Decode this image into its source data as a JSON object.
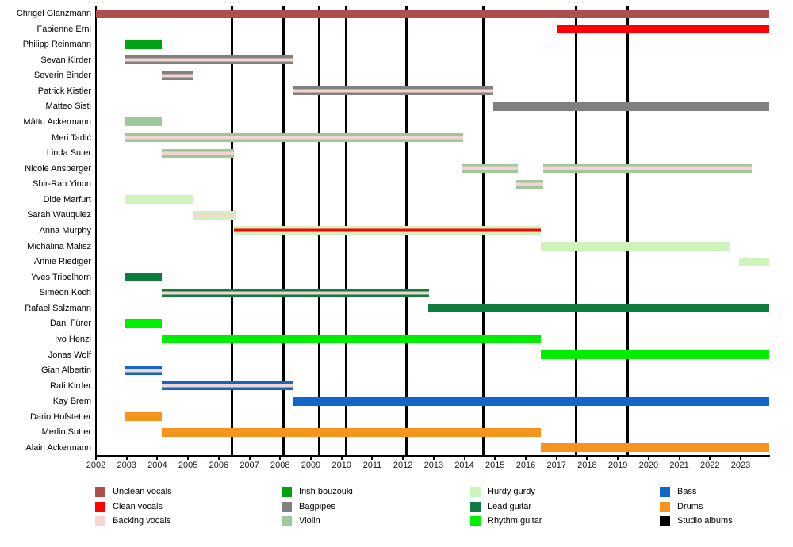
{
  "chart_data": {
    "type": "timeline",
    "description": "Band members timeline with studio album release markers",
    "x_axis": {
      "start": 2002,
      "end": 2023.93,
      "tick_years": [
        2002,
        2003,
        2004,
        2005,
        2006,
        2007,
        2008,
        2009,
        2010,
        2011,
        2012,
        2013,
        2014,
        2015,
        2016,
        2017,
        2018,
        2019,
        2020,
        2021,
        2022,
        2023
      ]
    },
    "roles": {
      "unclean_vocals": {
        "label": "Unclean vocals",
        "color": "#b04d4d"
      },
      "clean_vocals": {
        "label": "Clean vocals",
        "color": "#ff0000"
      },
      "backing_vocals": {
        "label": "Backing vocals",
        "color": "#f6d5d0"
      },
      "irish_bouzouki": {
        "label": "Irish bouzouki",
        "color": "#00a313"
      },
      "bagpipes": {
        "label": "Bagpipes",
        "color": "#808080"
      },
      "violin": {
        "label": "Violin",
        "color": "#9ec79c"
      },
      "hurdy_gurdy": {
        "label": "Hurdy gurdy",
        "color": "#cff3bd"
      },
      "lead_guitar": {
        "label": "Lead guitar",
        "color": "#0e7c3e"
      },
      "rhythm_guitar": {
        "label": "Rhythm guitar",
        "color": "#00ef00"
      },
      "bass": {
        "label": "Bass",
        "color": "#1166c8"
      },
      "drums": {
        "label": "Drums",
        "color": "#f7941e"
      },
      "studio_albums": {
        "label": "Studio albums",
        "color": "#000000"
      }
    },
    "legend_columns": [
      [
        "unclean_vocals",
        "clean_vocals",
        "backing_vocals"
      ],
      [
        "irish_bouzouki",
        "bagpipes",
        "violin"
      ],
      [
        "hurdy_gurdy",
        "lead_guitar",
        "rhythm_guitar"
      ],
      [
        "bass",
        "drums",
        "studio_albums"
      ]
    ],
    "albums": [
      2006.42,
      2008.12,
      2009.28,
      2010.16,
      2012.12,
      2014.63,
      2017.65,
      2019.33
    ],
    "members": [
      {
        "name": "Chrigel Glanzmann",
        "bars": [
          {
            "from": 2002.0,
            "to": 2023.93,
            "stripes": [
              "unclean_vocals"
            ]
          }
        ]
      },
      {
        "name": "Fabienne Erni",
        "bars": [
          {
            "from": 2017.0,
            "to": 2023.93,
            "stripes": [
              "clean_vocals"
            ]
          }
        ]
      },
      {
        "name": "Philipp Reinmann",
        "bars": [
          {
            "from": 2002.92,
            "to": 2004.15,
            "stripes": [
              "irish_bouzouki"
            ]
          }
        ]
      },
      {
        "name": "Sevan Kirder",
        "bars": [
          {
            "from": 2002.92,
            "to": 2008.4,
            "stripes": [
              "bagpipes",
              "backing_vocals",
              "bagpipes"
            ]
          }
        ]
      },
      {
        "name": "Severin Binder",
        "bars": [
          {
            "from": 2004.15,
            "to": 2005.15,
            "stripes": [
              "bagpipes",
              "backing_vocals",
              "bagpipes"
            ]
          }
        ]
      },
      {
        "name": "Patrick Kistler",
        "bars": [
          {
            "from": 2008.4,
            "to": 2014.95,
            "stripes": [
              "bagpipes",
              "backing_vocals",
              "bagpipes"
            ]
          }
        ]
      },
      {
        "name": "Matteo Sisti",
        "bars": [
          {
            "from": 2014.95,
            "to": 2023.93,
            "stripes": [
              "bagpipes"
            ]
          }
        ]
      },
      {
        "name": "Mättu Ackermann",
        "bars": [
          {
            "from": 2002.92,
            "to": 2004.15,
            "stripes": [
              "violin"
            ]
          }
        ]
      },
      {
        "name": "Meri Tadić",
        "bars": [
          {
            "from": 2002.92,
            "to": 2013.95,
            "stripes": [
              "violin",
              "backing_vocals",
              "violin"
            ]
          }
        ]
      },
      {
        "name": "Linda Suter",
        "bars": [
          {
            "from": 2004.15,
            "to": 2006.5,
            "stripes": [
              "violin",
              "backing_vocals",
              "violin"
            ]
          }
        ]
      },
      {
        "name": "Nicole Ansperger",
        "bars": [
          {
            "from": 2013.92,
            "to": 2015.75,
            "stripes": [
              "violin",
              "backing_vocals",
              "violin"
            ]
          },
          {
            "from": 2016.57,
            "to": 2023.35,
            "stripes": [
              "violin",
              "backing_vocals",
              "violin"
            ]
          }
        ]
      },
      {
        "name": "Shir-Ran Yinon",
        "bars": [
          {
            "from": 2015.7,
            "to": 2016.57,
            "stripes": [
              "violin",
              "backing_vocals",
              "violin"
            ]
          }
        ]
      },
      {
        "name": "Dide Marfurt",
        "bars": [
          {
            "from": 2002.92,
            "to": 2005.15,
            "stripes": [
              "hurdy_gurdy"
            ]
          }
        ]
      },
      {
        "name": "Sarah Wauquiez",
        "bars": [
          {
            "from": 2005.15,
            "to": 2006.55,
            "stripes": [
              "hurdy_gurdy",
              "backing_vocals",
              "hurdy_gurdy"
            ]
          }
        ]
      },
      {
        "name": "Anna Murphy",
        "bars": [
          {
            "from": 2006.5,
            "to": 2016.5,
            "stripes": [
              "hurdy_gurdy",
              "clean_vocals",
              "hurdy_gurdy"
            ]
          }
        ]
      },
      {
        "name": "Michalina Malisz",
        "bars": [
          {
            "from": 2016.5,
            "to": 2022.65,
            "stripes": [
              "hurdy_gurdy"
            ]
          }
        ]
      },
      {
        "name": "Annie Riediger",
        "bars": [
          {
            "from": 2022.95,
            "to": 2023.93,
            "stripes": [
              "hurdy_gurdy"
            ]
          }
        ]
      },
      {
        "name": "Yves Tribelhorn",
        "bars": [
          {
            "from": 2002.92,
            "to": 2004.15,
            "stripes": [
              "lead_guitar"
            ]
          }
        ]
      },
      {
        "name": "Siméon Koch",
        "bars": [
          {
            "from": 2004.15,
            "to": 2012.85,
            "stripes": [
              "lead_guitar",
              "backing_vocals",
              "lead_guitar"
            ]
          }
        ]
      },
      {
        "name": "Rafael Salzmann",
        "bars": [
          {
            "from": 2012.82,
            "to": 2023.93,
            "stripes": [
              "lead_guitar"
            ]
          }
        ]
      },
      {
        "name": "Dani Fürer",
        "bars": [
          {
            "from": 2002.92,
            "to": 2004.15,
            "stripes": [
              "rhythm_guitar"
            ]
          }
        ]
      },
      {
        "name": "Ivo Henzi",
        "bars": [
          {
            "from": 2004.15,
            "to": 2016.5,
            "stripes": [
              "rhythm_guitar"
            ]
          }
        ]
      },
      {
        "name": "Jonas Wolf",
        "bars": [
          {
            "from": 2016.5,
            "to": 2023.93,
            "stripes": [
              "rhythm_guitar"
            ]
          }
        ]
      },
      {
        "name": "Gian Albertin",
        "bars": [
          {
            "from": 2002.92,
            "to": 2004.15,
            "stripes": [
              "bass",
              "backing_vocals",
              "bass"
            ]
          }
        ]
      },
      {
        "name": "Rafi Kirder",
        "bars": [
          {
            "from": 2004.15,
            "to": 2008.42,
            "stripes": [
              "bass",
              "backing_vocals",
              "bass"
            ]
          }
        ]
      },
      {
        "name": "Kay Brem",
        "bars": [
          {
            "from": 2008.42,
            "to": 2023.93,
            "stripes": [
              "bass"
            ]
          }
        ]
      },
      {
        "name": "Dario Hofstetter",
        "bars": [
          {
            "from": 2002.92,
            "to": 2004.15,
            "stripes": [
              "drums"
            ]
          }
        ]
      },
      {
        "name": "Merlin Sutter",
        "bars": [
          {
            "from": 2004.15,
            "to": 2016.5,
            "stripes": [
              "drums"
            ]
          }
        ]
      },
      {
        "name": "Alain Ackermann",
        "bars": [
          {
            "from": 2016.5,
            "to": 2023.93,
            "stripes": [
              "drums"
            ]
          }
        ]
      }
    ]
  }
}
